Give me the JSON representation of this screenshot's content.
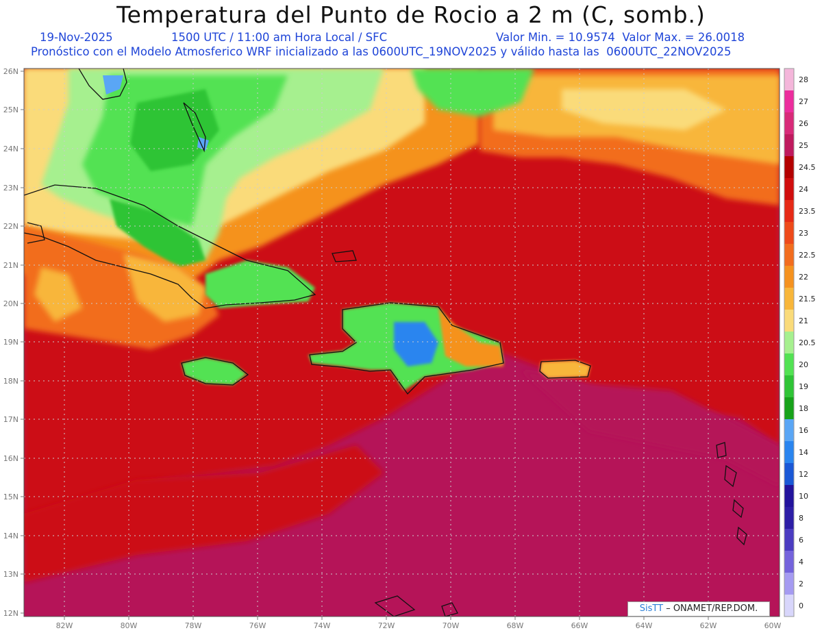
{
  "title": "Temperatura del Punto de Rocio a 2 m (C, somb.)",
  "line1": {
    "date": "19-Nov-2025",
    "time": "1500 UTC / 11:00 am Hora Local / SFC",
    "minmax": "Valor Min. = 10.9574  Valor Max. = 26.0018"
  },
  "line2": "Pronóstico con el Modelo Atmosferico WRF inicializado a las 0600UTC_19NOV2025 y válido hasta las  0600UTC_22NOV2025",
  "credit": {
    "logo": "SisTT",
    "text": " – ONAMET/REP.DOM."
  },
  "lat_labels": [
    "26N",
    "25N",
    "24N",
    "23N",
    "22N",
    "21N",
    "20N",
    "19N",
    "18N",
    "17N",
    "16N",
    "15N",
    "14N",
    "13N",
    "12N"
  ],
  "lon_labels": [
    "82W",
    "80W",
    "78W",
    "76W",
    "74W",
    "72W",
    "70W",
    "68W",
    "66W",
    "64W",
    "62W",
    "60W"
  ],
  "colorbar": {
    "labels": [
      "28",
      "27",
      "26",
      "25",
      "24.5",
      "24",
      "23.5",
      "23",
      "22.5",
      "22",
      "21.5",
      "21",
      "20.5",
      "20",
      "19",
      "18",
      "16",
      "14",
      "12",
      "10",
      "8",
      "6",
      "4",
      "2",
      "0"
    ],
    "colors": [
      "#f4b6da",
      "#ec2d9d",
      "#d82a79",
      "#bf1a5e",
      "#b30000",
      "#d00d0d",
      "#e62a16",
      "#ee4a1a",
      "#f26d1e",
      "#f5921f",
      "#f8b63a",
      "#fadb7a",
      "#a6f08f",
      "#52e253",
      "#2fc436",
      "#17a21a",
      "#5aa6f5",
      "#2a85ef",
      "#1a58d6",
      "#22139c",
      "#2d1ea6",
      "#4b3cc1",
      "#7463dc",
      "#a59bf1",
      "#d8d6fb"
    ]
  },
  "ui": {
    "background": "#b51458",
    "grid_color": "#cccccc"
  }
}
